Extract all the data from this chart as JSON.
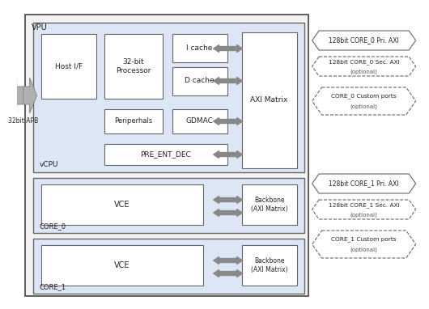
{
  "bg": "#ffffff",
  "vpu_fill": "#f2f2f2",
  "vcpu_fill": "#dce6f5",
  "core_fill": "#dce6f5",
  "white": "#ffffff",
  "arr_color": "#888888",
  "edge_dark": "#444444",
  "edge_mid": "#666666",
  "vpu_label": "VPU",
  "vcpu_label": "vCPU",
  "core0_label": "CORE_0",
  "core1_label": "CORE_1",
  "apb_label": "32bit APB",
  "host_label": "Host I/F",
  "proc_label": "32-bit\nProcessor",
  "icache_label": "I cache",
  "dcache_label": "D cache",
  "periph_label": "Periperhals",
  "gdmac_label": "GDMAC",
  "pre_label": "PRE_ENT_DEC",
  "axi_label": "AXI Matrix",
  "vce_label": "VCE",
  "backbone_label": "Backbone\n(AXI Matrix)",
  "c0_pri": "128bit CORE_0 Pri. AXI",
  "c0_sec": "128bit CORE_0 Sec. AXI",
  "c0_sec2": "(optional)",
  "c0_cust": "CORE_0 Custom ports",
  "c0_cust2": "(optional)",
  "c1_pri": "128bit CORE_1 Pri. AXI",
  "c1_sec": "128bit CORE_1 Sec. AXI",
  "c1_sec2": "(optional)",
  "c1_cust": "CORE_1 Custom ports",
  "c1_cust2": "(optional)"
}
